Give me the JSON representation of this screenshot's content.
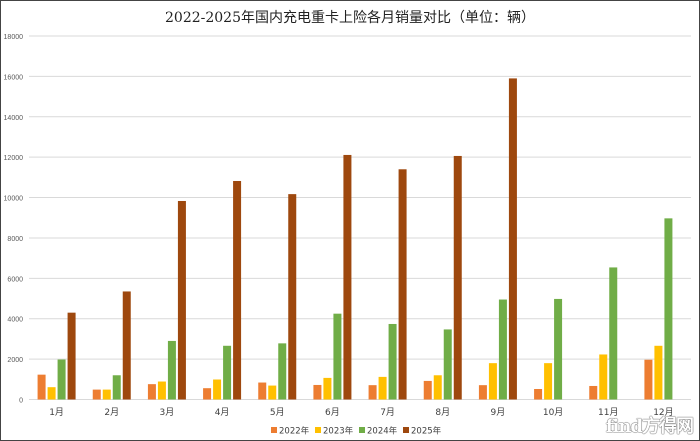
{
  "chart_data": {
    "type": "bar",
    "title": "2022-2025年国内充电重卡上险各月销量对比（单位：辆）",
    "xlabel": "",
    "ylabel": "",
    "ylim": [
      0,
      18000
    ],
    "yticks": [
      0,
      2000,
      4000,
      6000,
      8000,
      10000,
      12000,
      14000,
      16000,
      18000
    ],
    "grid": true,
    "legend_position": "bottom",
    "categories": [
      "1月",
      "2月",
      "3月",
      "4月",
      "5月",
      "6月",
      "7月",
      "8月",
      "9月",
      "10月",
      "11月",
      "12月"
    ],
    "series": [
      {
        "name": "2022年",
        "color": "#ED7D31",
        "values": [
          1230,
          490,
          760,
          560,
          840,
          720,
          710,
          920,
          710,
          520,
          670,
          1970
        ]
      },
      {
        "name": "2023年",
        "color": "#FFC000",
        "values": [
          610,
          490,
          890,
          990,
          690,
          1070,
          1120,
          1200,
          1800,
          1800,
          2230,
          2660
        ]
      },
      {
        "name": "2024年",
        "color": "#70AD47",
        "values": [
          1980,
          1200,
          2900,
          2660,
          2780,
          4250,
          3740,
          3470,
          4950,
          4980,
          6540,
          8970
        ]
      },
      {
        "name": "2025年",
        "color": "#9E480E",
        "values": [
          4300,
          5350,
          9830,
          10820,
          10170,
          12110,
          11400,
          12060,
          15900,
          null,
          null,
          null
        ]
      }
    ]
  },
  "watermark": "find方得网"
}
